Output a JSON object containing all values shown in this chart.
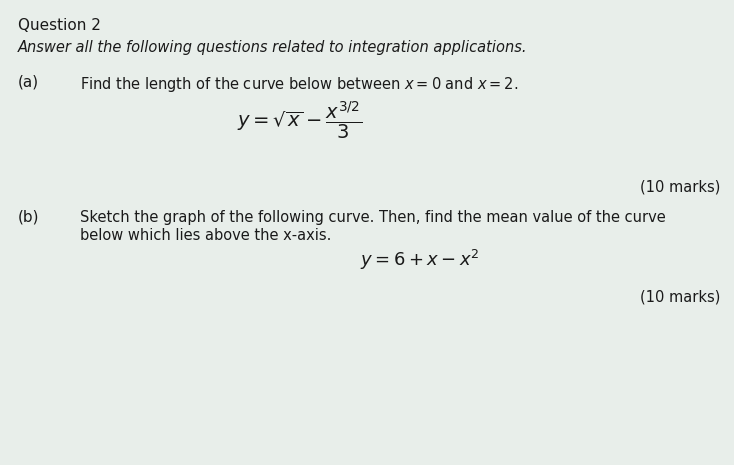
{
  "background_color": "#e8eeea",
  "title": "Question 2",
  "title_fontsize": 11,
  "title_fontweight": "normal",
  "intro_text": "Answer all the following questions related to integration applications.",
  "intro_fontsize": 10.5,
  "part_a_label": "(a)",
  "part_a_label_fontsize": 11,
  "part_a_text": "Find the length of the curve below between $x = 0$ and $x = 2$.",
  "part_a_text_fontsize": 10.5,
  "part_a_formula": "$y = \\sqrt{x} - \\dfrac{x^{3/2}}{3}$",
  "part_a_formula_fontsize": 14,
  "part_a_marks": "(10 marks)",
  "part_a_marks_fontsize": 10.5,
  "part_b_label": "(b)",
  "part_b_label_fontsize": 11,
  "part_b_text1": "Sketch the graph of the following curve. Then, find the mean value of the curve",
  "part_b_text2": "below which lies above the x-axis.",
  "part_b_text_fontsize": 10.5,
  "part_b_formula": "$y = 6 + x - x^2$",
  "part_b_formula_fontsize": 13,
  "part_b_marks": "(10 marks)",
  "part_b_marks_fontsize": 10.5,
  "text_color": "#1a1a1a"
}
